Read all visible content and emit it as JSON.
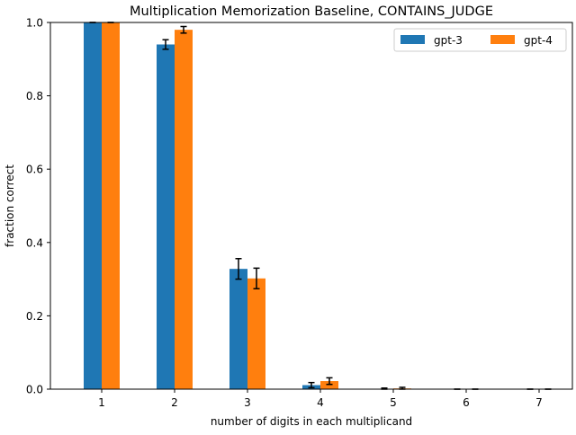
{
  "chart_data": {
    "type": "bar",
    "title": "Multiplication Memorization Baseline, CONTAINS_JUDGE",
    "xlabel": "number of digits in each multiplicand",
    "ylabel": "fraction correct",
    "categories": [
      "1",
      "2",
      "3",
      "4",
      "5",
      "6",
      "7"
    ],
    "ylim": [
      0,
      1.0
    ],
    "yticks": [
      "0.0",
      "0.2",
      "0.4",
      "0.6",
      "0.8",
      "1.0"
    ],
    "series": [
      {
        "name": "gpt-3",
        "color": "#1f77b4",
        "values": [
          1.0,
          0.94,
          0.328,
          0.011,
          0.001,
          0.0,
          0.0
        ],
        "errors": [
          0.0,
          0.013,
          0.028,
          0.007,
          0.002,
          0.0,
          0.0
        ]
      },
      {
        "name": "gpt-4",
        "color": "#ff7f0e",
        "values": [
          1.0,
          0.98,
          0.302,
          0.022,
          0.002,
          0.0,
          0.0
        ],
        "errors": [
          0.0,
          0.009,
          0.028,
          0.009,
          0.003,
          0.0,
          0.0
        ]
      }
    ],
    "legend_position": "top-right",
    "grid": false
  }
}
